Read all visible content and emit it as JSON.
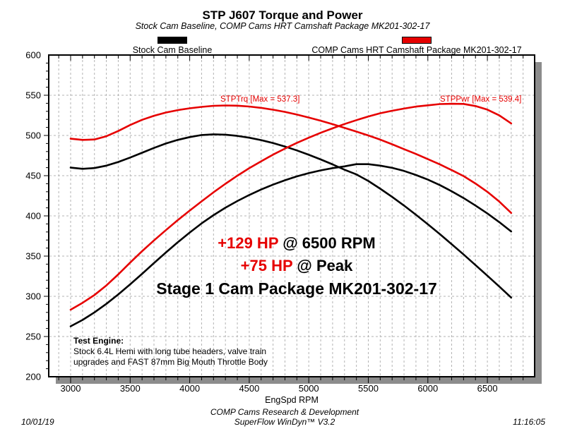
{
  "title": "STP J607 Torque and Power",
  "subtitle": "Stock Cam Baseline, COMP Cams HRT Camshaft Package MK201-302-17",
  "legend": {
    "stock_label": "Stock Cam Baseline",
    "comp_label": "COMP Cams HRT Camshaft Package MK201-302-17",
    "stock_color": "#000000",
    "comp_color": "#e60000"
  },
  "annotations": {
    "trq_max_label": "STPTrq [Max = 537.3]",
    "pwr_max_label": "STPPwr [Max = 539.4]",
    "gain_line1_red": "+129 HP",
    "gain_line1_black": " @ 6500 RPM",
    "gain_line2_red": "+75 HP",
    "gain_line2_black": " @ Peak",
    "gain_line3": "Stage 1 Cam Package MK201-302-17",
    "test_engine_heading": "Test Engine:",
    "test_engine_line1": "Stock 6.4L Hemi with long tube headers, valve train",
    "test_engine_line2": "upgrades and FAST 87mm Big Mouth Throttle Body"
  },
  "footer": {
    "line1": "COMP Cams Research & Development",
    "line2": "SuperFlow WinDyn™ V3.2",
    "date": "10/01/19",
    "time": "11:16:05"
  },
  "chart_data": {
    "type": "line",
    "title": "STP J607 Torque and Power",
    "xlabel": "EngSpd RPM",
    "ylabel": "",
    "xlim": [
      2820,
      6900
    ],
    "ylim": [
      200,
      600
    ],
    "grid": "dashed; vertical every 100 RPM, horizontal every 50",
    "legend_position": "top",
    "x_ticks": [
      3000,
      3500,
      4000,
      4500,
      5000,
      5500,
      6000,
      6500
    ],
    "y_ticks": [
      200,
      250,
      300,
      350,
      400,
      450,
      500,
      550,
      600
    ],
    "x": [
      3000,
      3100,
      3200,
      3300,
      3400,
      3500,
      3600,
      3700,
      3800,
      3900,
      4000,
      4100,
      4200,
      4300,
      4400,
      4500,
      4600,
      4700,
      4800,
      4900,
      5000,
      5100,
      5200,
      5300,
      5400,
      5500,
      5600,
      5700,
      5800,
      5900,
      6000,
      6100,
      6200,
      6300,
      6400,
      6500,
      6600,
      6700
    ],
    "series": [
      {
        "name": "STPTrq - Stock Cam Baseline (lb-ft)",
        "color": "#000000",
        "values": [
          460.0,
          458.5,
          459.5,
          462.5,
          467.0,
          472.5,
          478.5,
          484.5,
          490.0,
          494.5,
          498.0,
          500.5,
          501.4,
          501.0,
          499.5,
          497.2,
          494.2,
          490.5,
          486.2,
          481.4,
          476.0,
          470.2,
          464.0,
          457.4,
          451.6,
          443.4,
          433.8,
          423.6,
          412.8,
          401.4,
          389.6,
          377.4,
          364.8,
          352.0,
          338.9,
          325.6,
          312.1,
          298.4
        ]
      },
      {
        "name": "STPPwr - Stock Cam Baseline (HP)",
        "color": "#000000",
        "max": 464.4,
        "values": [
          262.7,
          270.6,
          280.0,
          290.6,
          302.3,
          314.9,
          328.0,
          341.3,
          354.5,
          367.2,
          379.3,
          390.7,
          400.9,
          410.2,
          418.4,
          426.0,
          432.8,
          438.9,
          444.3,
          449.1,
          453.2,
          456.6,
          459.4,
          461.6,
          464.3,
          464.3,
          462.5,
          459.7,
          455.9,
          450.9,
          445.1,
          438.3,
          430.6,
          422.2,
          412.9,
          403.0,
          392.2,
          380.6
        ]
      },
      {
        "name": "STPTrq - COMP Cams HRT Camshaft Package MK201-302-17 (lb-ft)",
        "color": "#e60000",
        "max": 537.3,
        "values": [
          496.0,
          494.5,
          495.0,
          499.0,
          505.5,
          513.0,
          519.5,
          524.5,
          528.5,
          531.5,
          533.8,
          535.5,
          536.8,
          537.3,
          537.0,
          536.0,
          534.3,
          532.0,
          529.3,
          526.0,
          522.3,
          518.3,
          514.0,
          509.5,
          504.8,
          500.0,
          494.8,
          489.0,
          483.0,
          477.0,
          470.5,
          464.1,
          456.9,
          449.5,
          440.3,
          429.9,
          417.7,
          403.7
        ]
      },
      {
        "name": "STPPwr - COMP Cams HRT Camshaft Package MK201-302-17 (HP)",
        "color": "#e60000",
        "max": 539.4,
        "values": [
          283.3,
          291.9,
          301.6,
          313.5,
          327.2,
          341.9,
          356.1,
          369.5,
          382.3,
          394.7,
          406.6,
          418.1,
          429.3,
          439.9,
          449.9,
          459.3,
          467.9,
          476.1,
          483.7,
          490.7,
          497.2,
          503.3,
          508.9,
          514.2,
          519.0,
          523.6,
          527.6,
          530.7,
          533.4,
          535.9,
          537.5,
          539.0,
          539.4,
          539.2,
          536.6,
          532.1,
          524.9,
          515.0
        ]
      }
    ]
  }
}
